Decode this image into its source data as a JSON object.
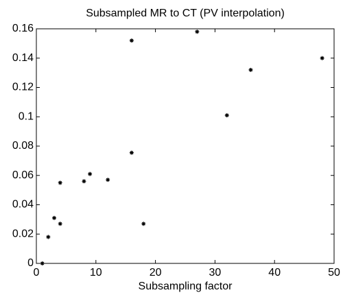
{
  "chart_data": {
    "type": "scatter",
    "title": "Subsampled MR to CT (PV interpolation)",
    "x_label": "Subsampling factor",
    "series": [
      {
        "color": "#000000",
        "x": [
          1,
          2,
          3,
          4,
          4,
          8,
          9,
          12,
          16,
          16,
          18,
          27,
          32,
          36,
          48
        ],
        "values": [
          0,
          0.018,
          0.031,
          0.027,
          0.055,
          0.056,
          0.061,
          0.057,
          0.152,
          0.0755,
          0.027,
          0.158,
          0.101,
          0.132,
          0.14
        ]
      }
    ],
    "xlim": [
      0,
      50
    ],
    "xticks": [
      0,
      10,
      20,
      30,
      40,
      50
    ],
    "ylim": [
      0,
      0.16
    ],
    "yticks": [
      0,
      0.02,
      0.04,
      0.06,
      0.08,
      0.1,
      0.12,
      0.14,
      0.16
    ],
    "grid": false
  }
}
